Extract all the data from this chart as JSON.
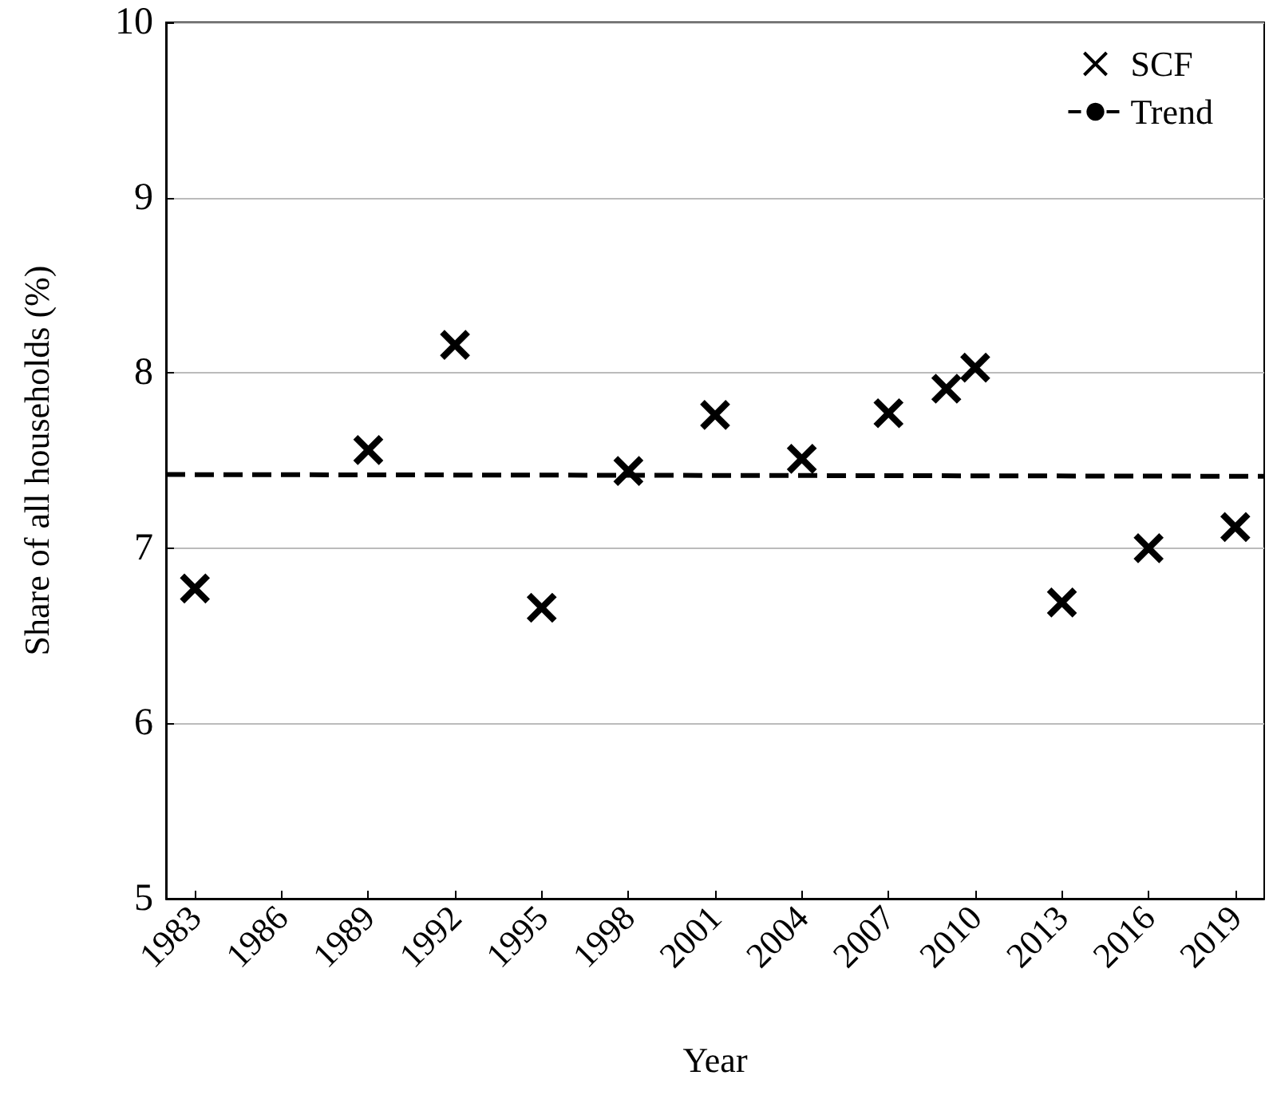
{
  "chart_data": {
    "type": "scatter",
    "xlabel": "Year",
    "ylabel": "Share of all households (%)",
    "xlim": [
      1982,
      2020
    ],
    "xticks": [
      1983,
      1986,
      1989,
      1992,
      1995,
      1998,
      2001,
      2004,
      2007,
      2010,
      2013,
      2016,
      2019
    ],
    "ylim": [
      5,
      10
    ],
    "yticks": [
      5,
      6,
      7,
      8,
      9,
      10
    ],
    "grid": "y",
    "legend": "top right",
    "series": [
      {
        "name": "SCF",
        "marker": "cross",
        "color": "#000000",
        "x": [
          1983,
          1989,
          1992,
          1995,
          1998,
          2001,
          2004,
          2007,
          2009,
          2010,
          2013,
          2016,
          2019
        ],
        "values": [
          6.77,
          7.56,
          8.16,
          6.66,
          7.44,
          7.76,
          7.51,
          7.77,
          7.91,
          8.03,
          6.69,
          7.0,
          7.12
        ]
      },
      {
        "name": "Trend",
        "type": "line",
        "marker": "none",
        "line_style": "dashed",
        "color": "#000000",
        "x": [
          1982,
          2020
        ],
        "values": [
          7.42,
          7.41
        ]
      }
    ]
  }
}
